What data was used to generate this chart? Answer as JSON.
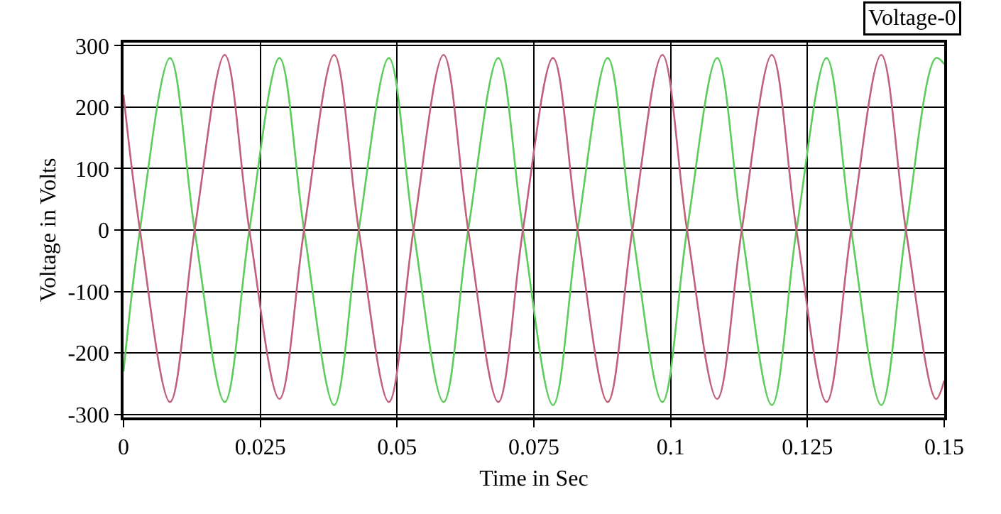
{
  "chart_data": {
    "type": "line",
    "xlabel": "Time in Sec",
    "ylabel": "Voltage in Volts",
    "annotations": [
      "Voltage-0"
    ],
    "xlim": [
      0,
      0.15
    ],
    "ylim": [
      -305,
      305
    ],
    "xticks": [
      0,
      0.025,
      0.05,
      0.075,
      0.1,
      0.125,
      0.15
    ],
    "yticks": [
      -300,
      -200,
      -100,
      0,
      100,
      200,
      300
    ],
    "grid": true,
    "line_style": "solid",
    "x": [
      0,
      0.003,
      0.0085,
      0.013,
      0.0185,
      0.023,
      0.0285,
      0.033,
      0.0385,
      0.043,
      0.0485,
      0.053,
      0.0585,
      0.063,
      0.0685,
      0.073,
      0.0785,
      0.083,
      0.0885,
      0.093,
      0.0985,
      0.103,
      0.1085,
      0.113,
      0.1185,
      0.123,
      0.1285,
      0.133,
      0.1385,
      0.143,
      0.1485,
      0.15
    ],
    "series": [
      {
        "color": "#5ccc5c",
        "values": [
          -230,
          0,
          280,
          0,
          -280,
          0,
          280,
          0,
          -285,
          0,
          280,
          0,
          -280,
          0,
          280,
          0,
          -285,
          0,
          280,
          0,
          -280,
          0,
          280,
          0,
          -285,
          0,
          280,
          0,
          -285,
          0,
          280,
          270
        ]
      },
      {
        "color": "#c0607a",
        "values": [
          220,
          0,
          -280,
          0,
          285,
          0,
          -275,
          0,
          285,
          0,
          -280,
          0,
          285,
          0,
          -280,
          0,
          280,
          0,
          -280,
          0,
          285,
          0,
          -275,
          0,
          285,
          0,
          -280,
          0,
          285,
          0,
          -275,
          -245
        ]
      }
    ]
  }
}
